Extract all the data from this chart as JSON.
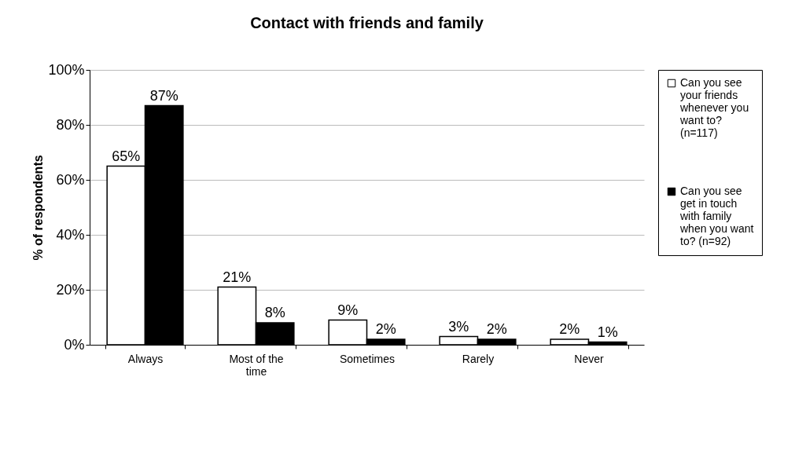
{
  "chart_data": {
    "type": "bar",
    "title": "Contact with friends and family",
    "ylabel": "% of respondents",
    "categories": [
      "Always",
      "Most of the time",
      "Sometimes",
      "Rarely",
      "Never"
    ],
    "series": [
      {
        "name": "Can you see your friends whenever you want to? (n=117)",
        "color": "#ffffff",
        "values": [
          65,
          21,
          9,
          3,
          2
        ],
        "value_labels": [
          "65%",
          "21%",
          "9%",
          "3%",
          "2%"
        ]
      },
      {
        "name": "Can you see get in touch with family when you want to? (n=92)",
        "color": "#000000",
        "values": [
          87,
          8,
          2,
          2,
          1
        ],
        "value_labels": [
          "87%",
          "8%",
          "2%",
          "2%",
          "1%"
        ]
      }
    ],
    "ylim": [
      0,
      100
    ],
    "yticks": [
      {
        "value": 0,
        "label": "0%"
      },
      {
        "value": 20,
        "label": "20%"
      },
      {
        "value": 40,
        "label": "40%"
      },
      {
        "value": 60,
        "label": "60%"
      },
      {
        "value": 80,
        "label": "80%"
      },
      {
        "value": 100,
        "label": "100%"
      }
    ],
    "grid": "y",
    "legend": "right"
  }
}
